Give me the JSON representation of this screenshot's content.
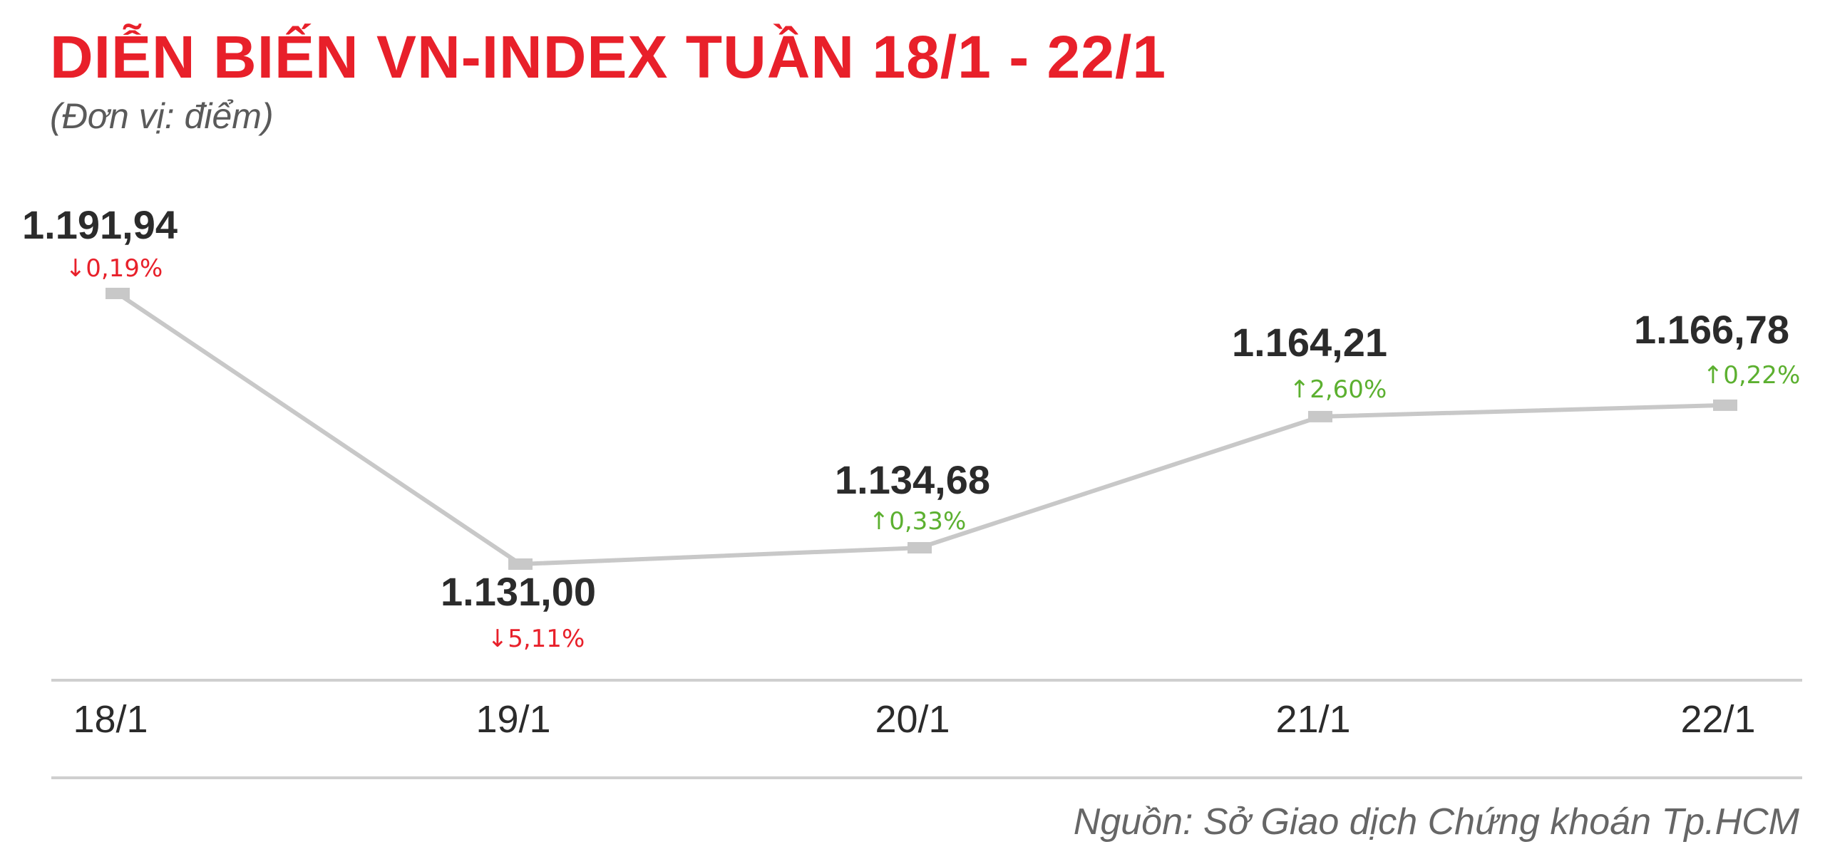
{
  "chart_data": {
    "type": "line",
    "title": "DIỄN BIẾN VN-INDEX TUẦN 18/1 - 22/1",
    "subtitle": "(Đơn vị: điểm)",
    "source": "Nguồn: Sở Giao dịch Chứng khoán Tp.HCM",
    "categories": [
      "18/1",
      "19/1",
      "20/1",
      "21/1",
      "22/1"
    ],
    "series": [
      {
        "values": [
          1191.94,
          1131.0,
          1134.68,
          1164.21,
          1166.78
        ],
        "value_labels": [
          "1.191,94",
          "1.131,00",
          "1.134,68",
          "1.164,21",
          "1.166,78"
        ],
        "changes": [
          "0,19%",
          "5,11%",
          "0,33%",
          "2,60%",
          "0,22%"
        ],
        "change_directions": [
          "down",
          "down",
          "up",
          "up",
          "up"
        ]
      }
    ],
    "grid": false,
    "colors": {
      "title": "#e8202a",
      "line": "#c8c8c8",
      "down": "#e8202a",
      "up": "#5cb030",
      "axis": "#cfcfcf",
      "text": "#2b2b2b"
    }
  }
}
